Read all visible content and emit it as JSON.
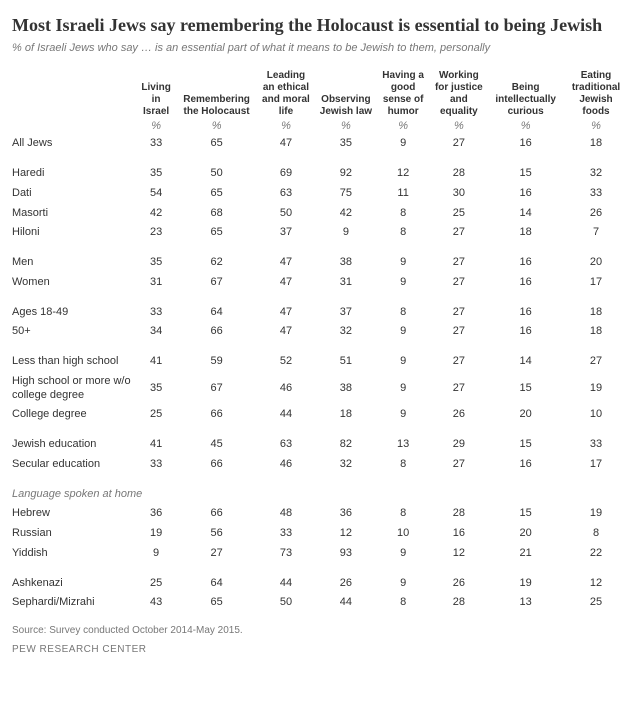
{
  "title": "Most Israeli Jews say remembering the Holocaust is essential to being Jewish",
  "subtitle": "% of Israeli Jews who say … is an essential part of what it means to be Jewish to them, personally",
  "columns": [
    "Living in Israel",
    "Remembering the Holocaust",
    "Leading an ethical and moral life",
    "Observing Jewish law",
    "Having a good sense of humor",
    "Working for justice and equality",
    "Being intellectually curious",
    "Eating traditional Jewish foods"
  ],
  "pctSymbol": "%",
  "sections": [
    {
      "header": null,
      "rows": [
        {
          "label": "All Jews",
          "vals": [
            33,
            65,
            47,
            35,
            9,
            27,
            16,
            18
          ]
        }
      ]
    },
    {
      "header": null,
      "rows": [
        {
          "label": "Haredi",
          "vals": [
            35,
            50,
            69,
            92,
            12,
            28,
            15,
            32
          ]
        },
        {
          "label": "Dati",
          "vals": [
            54,
            65,
            63,
            75,
            11,
            30,
            16,
            33
          ]
        },
        {
          "label": "Masorti",
          "vals": [
            42,
            68,
            50,
            42,
            8,
            25,
            14,
            26
          ]
        },
        {
          "label": "Hiloni",
          "vals": [
            23,
            65,
            37,
            9,
            8,
            27,
            18,
            7
          ]
        }
      ]
    },
    {
      "header": null,
      "rows": [
        {
          "label": "Men",
          "vals": [
            35,
            62,
            47,
            38,
            9,
            27,
            16,
            20
          ]
        },
        {
          "label": "Women",
          "vals": [
            31,
            67,
            47,
            31,
            9,
            27,
            16,
            17
          ]
        }
      ]
    },
    {
      "header": null,
      "rows": [
        {
          "label": "Ages 18-49",
          "vals": [
            33,
            64,
            47,
            37,
            8,
            27,
            16,
            18
          ]
        },
        {
          "label": "50+",
          "vals": [
            34,
            66,
            47,
            32,
            9,
            27,
            16,
            18
          ]
        }
      ]
    },
    {
      "header": null,
      "rows": [
        {
          "label": "Less than high school",
          "vals": [
            41,
            59,
            52,
            51,
            9,
            27,
            14,
            27
          ]
        },
        {
          "label": "High school or more w/o college degree",
          "vals": [
            35,
            67,
            46,
            38,
            9,
            27,
            15,
            19
          ]
        },
        {
          "label": "College degree",
          "vals": [
            25,
            66,
            44,
            18,
            9,
            26,
            20,
            10
          ]
        }
      ]
    },
    {
      "header": null,
      "rows": [
        {
          "label": "Jewish education",
          "vals": [
            41,
            45,
            63,
            82,
            13,
            29,
            15,
            33
          ]
        },
        {
          "label": "Secular education",
          "vals": [
            33,
            66,
            46,
            32,
            8,
            27,
            16,
            17
          ]
        }
      ]
    },
    {
      "header": "Language spoken at home",
      "rows": [
        {
          "label": "Hebrew",
          "vals": [
            36,
            66,
            48,
            36,
            8,
            28,
            15,
            19
          ]
        },
        {
          "label": "Russian",
          "vals": [
            19,
            56,
            33,
            12,
            10,
            16,
            20,
            8
          ]
        },
        {
          "label": "Yiddish",
          "vals": [
            9,
            27,
            73,
            93,
            9,
            12,
            21,
            22
          ]
        }
      ]
    },
    {
      "header": null,
      "rows": [
        {
          "label": "Ashkenazi",
          "vals": [
            25,
            64,
            44,
            26,
            9,
            26,
            19,
            12
          ]
        },
        {
          "label": "Sephardi/Mizrahi",
          "vals": [
            43,
            65,
            50,
            44,
            8,
            28,
            13,
            25
          ]
        }
      ]
    }
  ],
  "source": "Source: Survey conducted October 2014-May 2015.",
  "footer": "PEW RESEARCH CENTER",
  "style": {
    "col_width_label": 124,
    "col_width_data": 62,
    "title_fontsize": 18,
    "subtitle_fontsize": 11,
    "cell_fontsize": 11,
    "header_fontsize": 10,
    "source_fontsize": 10,
    "text_color": "#333333",
    "muted_color": "#777777",
    "background_color": "#ffffff"
  }
}
